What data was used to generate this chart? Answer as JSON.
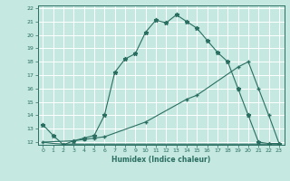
{
  "xlabel": "Humidex (Indice chaleur)",
  "bg_color": "#c5e8e0",
  "grid_color": "#ffffff",
  "line_color": "#2a6e62",
  "xlim": [
    -0.5,
    23.5
  ],
  "ylim": [
    11.8,
    22.2
  ],
  "xticks": [
    0,
    1,
    2,
    3,
    4,
    5,
    6,
    7,
    8,
    9,
    10,
    11,
    12,
    13,
    14,
    15,
    16,
    17,
    18,
    19,
    20,
    21,
    22,
    23
  ],
  "yticks": [
    12,
    13,
    14,
    15,
    16,
    17,
    18,
    19,
    20,
    21,
    22
  ],
  "line1_x": [
    0,
    1,
    2,
    3,
    4,
    5,
    6,
    7,
    8,
    9,
    10,
    11,
    12,
    13,
    14,
    15,
    16,
    17,
    18,
    19,
    20,
    21,
    22,
    23
  ],
  "line1_y": [
    13.3,
    12.5,
    11.8,
    12.1,
    12.3,
    12.5,
    14.0,
    17.2,
    18.2,
    18.6,
    20.2,
    21.1,
    20.9,
    21.5,
    21.0,
    20.5,
    19.6,
    18.7,
    18.0,
    16.0,
    14.0,
    12.0,
    11.9,
    11.9
  ],
  "line2_x": [
    0,
    3,
    4,
    5,
    6,
    10,
    14,
    15,
    19,
    20,
    21,
    22,
    23
  ],
  "line2_y": [
    12.0,
    12.1,
    12.2,
    12.3,
    12.4,
    13.5,
    15.2,
    15.5,
    17.6,
    18.0,
    16.0,
    14.0,
    11.9
  ],
  "line3_x": [
    0,
    1,
    2,
    3,
    10,
    19,
    20,
    21,
    22,
    23
  ],
  "line3_y": [
    12.0,
    11.9,
    11.85,
    11.85,
    11.85,
    11.85,
    11.85,
    11.85,
    11.85,
    11.85
  ]
}
